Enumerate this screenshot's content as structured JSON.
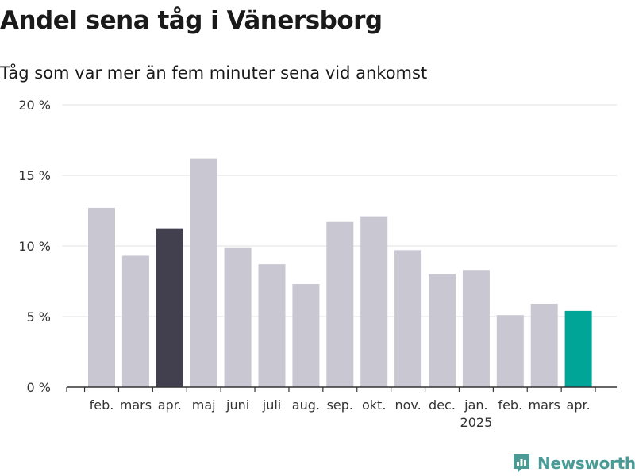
{
  "header": {
    "title": "Andel sena tåg i Vänersborg",
    "subtitle": "Tåg som var mer än fem minuter sena vid ankomst"
  },
  "brand": {
    "name": "Newsworthy",
    "color": "#4a9b96"
  },
  "colors": {
    "default_bar": "#c8c7d2",
    "highlight_previous_year": "#42404f",
    "highlight_latest": "#00a597"
  },
  "chart_data": {
    "type": "bar",
    "categories": [
      "feb.",
      "mars",
      "apr.",
      "maj",
      "juni",
      "juli",
      "aug.",
      "sep.",
      "okt.",
      "nov.",
      "dec.",
      "jan.",
      "feb.",
      "mars",
      "apr."
    ],
    "year_labels": [
      {
        "index": 11,
        "label": "2025"
      }
    ],
    "values": [
      12.7,
      9.3,
      11.2,
      16.2,
      9.9,
      8.7,
      7.3,
      11.7,
      12.1,
      9.7,
      8.0,
      8.3,
      5.1,
      5.9,
      5.4
    ],
    "highlight": {
      "2": "#42404f",
      "14": "#00a597"
    },
    "ylim": [
      0,
      20
    ],
    "yticks": [
      0,
      5,
      10,
      15,
      20
    ],
    "ytick_labels": [
      "0 %",
      "5 %",
      "10 %",
      "15 %",
      "20 %"
    ],
    "xlabel": "",
    "ylabel": "",
    "grid": true
  }
}
